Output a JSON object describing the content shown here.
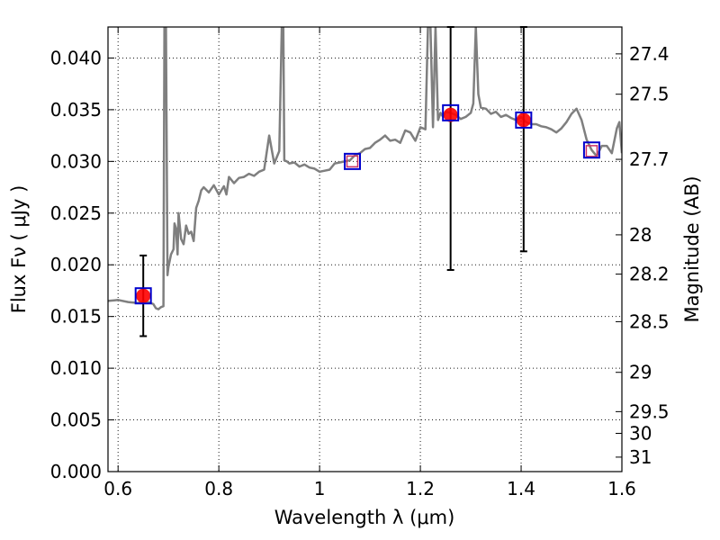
{
  "chart_data": {
    "type": "line",
    "xlabel": "Wavelength  λ (μm)",
    "ylabel": "Flux  Fν  ( μJy )",
    "ylabel_right": "Magnitude (AB)",
    "xlim": [
      0.58,
      1.6
    ],
    "ylim": [
      0.0,
      0.043
    ],
    "grid": true,
    "x_ticks": [
      {
        "value": 0.6,
        "label": "0.6"
      },
      {
        "value": 0.8,
        "label": "0.8"
      },
      {
        "value": 1.0,
        "label": "1"
      },
      {
        "value": 1.2,
        "label": "1.2"
      },
      {
        "value": 1.4,
        "label": "1.4"
      },
      {
        "value": 1.6,
        "label": "1.6"
      }
    ],
    "y_ticks": [
      {
        "value": 0.0,
        "label": "0.000"
      },
      {
        "value": 0.005,
        "label": "0.005"
      },
      {
        "value": 0.01,
        "label": "0.010"
      },
      {
        "value": 0.015,
        "label": "0.015"
      },
      {
        "value": 0.02,
        "label": "0.020"
      },
      {
        "value": 0.025,
        "label": "0.025"
      },
      {
        "value": 0.03,
        "label": "0.030"
      },
      {
        "value": 0.035,
        "label": "0.035"
      },
      {
        "value": 0.04,
        "label": "0.040"
      }
    ],
    "magnitude_ticks": [
      {
        "label": "27.4",
        "flux": 0.0404
      },
      {
        "label": "27.5",
        "flux": 0.0365
      },
      {
        "label": "27.7",
        "flux": 0.0302
      },
      {
        "label": "28",
        "flux": 0.0229
      },
      {
        "label": "28.2",
        "flux": 0.0191
      },
      {
        "label": "28.5",
        "flux": 0.0145
      },
      {
        "label": "29",
        "flux": 0.0096
      },
      {
        "label": "29.5",
        "flux": 0.0058
      },
      {
        "label": "30",
        "flux": 0.0037
      },
      {
        "label": "31",
        "flux": 0.0014
      }
    ],
    "spectrum": {
      "x": [
        0.58,
        0.6,
        0.62,
        0.64,
        0.65,
        0.66,
        0.67,
        0.675,
        0.68,
        0.685,
        0.69,
        0.692,
        0.695,
        0.698,
        0.7,
        0.705,
        0.71,
        0.712,
        0.715,
        0.718,
        0.72,
        0.725,
        0.73,
        0.735,
        0.74,
        0.745,
        0.75,
        0.755,
        0.76,
        0.765,
        0.77,
        0.78,
        0.79,
        0.8,
        0.81,
        0.815,
        0.82,
        0.83,
        0.84,
        0.85,
        0.86,
        0.87,
        0.88,
        0.89,
        0.9,
        0.91,
        0.92,
        0.925,
        0.928,
        0.93,
        0.935,
        0.94,
        0.95,
        0.96,
        0.97,
        0.98,
        0.99,
        1.0,
        1.01,
        1.02,
        1.03,
        1.04,
        1.05,
        1.06,
        1.07,
        1.08,
        1.09,
        1.1,
        1.11,
        1.12,
        1.13,
        1.14,
        1.15,
        1.16,
        1.17,
        1.18,
        1.19,
        1.2,
        1.21,
        1.215,
        1.22,
        1.225,
        1.23,
        1.235,
        1.24,
        1.245,
        1.25,
        1.26,
        1.27,
        1.28,
        1.29,
        1.3,
        1.305,
        1.31,
        1.315,
        1.32,
        1.33,
        1.34,
        1.35,
        1.36,
        1.37,
        1.38,
        1.39,
        1.4,
        1.41,
        1.42,
        1.43,
        1.44,
        1.45,
        1.46,
        1.47,
        1.48,
        1.49,
        1.5,
        1.51,
        1.52,
        1.53,
        1.54,
        1.55,
        1.56,
        1.57,
        1.58,
        1.59,
        1.595,
        1.6
      ],
      "y": [
        0.0165,
        0.0166,
        0.0164,
        0.0163,
        0.0165,
        0.0164,
        0.0162,
        0.0158,
        0.0157,
        0.0159,
        0.016,
        0.043,
        0.043,
        0.019,
        0.0198,
        0.021,
        0.0215,
        0.024,
        0.0235,
        0.021,
        0.025,
        0.0225,
        0.022,
        0.0238,
        0.023,
        0.0232,
        0.0223,
        0.0255,
        0.0262,
        0.0272,
        0.0275,
        0.027,
        0.0277,
        0.0268,
        0.0276,
        0.0268,
        0.0285,
        0.0279,
        0.0284,
        0.0285,
        0.0288,
        0.0286,
        0.029,
        0.0292,
        0.0325,
        0.0298,
        0.031,
        0.043,
        0.043,
        0.0301,
        0.03,
        0.0298,
        0.0299,
        0.0295,
        0.0297,
        0.0294,
        0.0293,
        0.029,
        0.0291,
        0.0292,
        0.0298,
        0.0299,
        0.03,
        0.0301,
        0.0306,
        0.0308,
        0.0312,
        0.0313,
        0.0318,
        0.0321,
        0.0325,
        0.032,
        0.0321,
        0.0318,
        0.033,
        0.0328,
        0.032,
        0.0333,
        0.0331,
        0.043,
        0.043,
        0.0333,
        0.043,
        0.034,
        0.0347,
        0.0343,
        0.0348,
        0.0347,
        0.0345,
        0.0341,
        0.0343,
        0.0347,
        0.0356,
        0.043,
        0.0365,
        0.0352,
        0.0351,
        0.0346,
        0.0348,
        0.0343,
        0.0345,
        0.0342,
        0.034,
        0.0343,
        0.0338,
        0.0336,
        0.0336,
        0.0334,
        0.0333,
        0.0331,
        0.0328,
        0.0332,
        0.0338,
        0.0346,
        0.0351,
        0.034,
        0.0321,
        0.0311,
        0.0305,
        0.0315,
        0.0315,
        0.0308,
        0.0332,
        0.0338,
        0.0308
      ]
    },
    "observed_points": [
      {
        "x": 0.65,
        "y": 0.017,
        "err_low": 0.0131,
        "err_high": 0.0209
      },
      {
        "x": 1.26,
        "y": 0.0345,
        "err_low": 0.0195,
        "err_high": 0.043
      },
      {
        "x": 1.405,
        "y": 0.034,
        "err_low": 0.0213,
        "err_high": 0.043
      }
    ],
    "model_points": [
      {
        "x": 0.65,
        "y": 0.017
      },
      {
        "x": 1.065,
        "y": 0.03
      },
      {
        "x": 1.26,
        "y": 0.0347
      },
      {
        "x": 1.405,
        "y": 0.034
      },
      {
        "x": 1.54,
        "y": 0.0311
      }
    ],
    "open_points": [
      {
        "x": 1.065,
        "y": 0.03
      },
      {
        "x": 1.54,
        "y": 0.031
      }
    ],
    "colors": {
      "spectrum": "#7f7f7f",
      "observed": "#ff0000",
      "model": "#0000cc",
      "open": "#cc3366",
      "errorbar": "#000000"
    }
  }
}
